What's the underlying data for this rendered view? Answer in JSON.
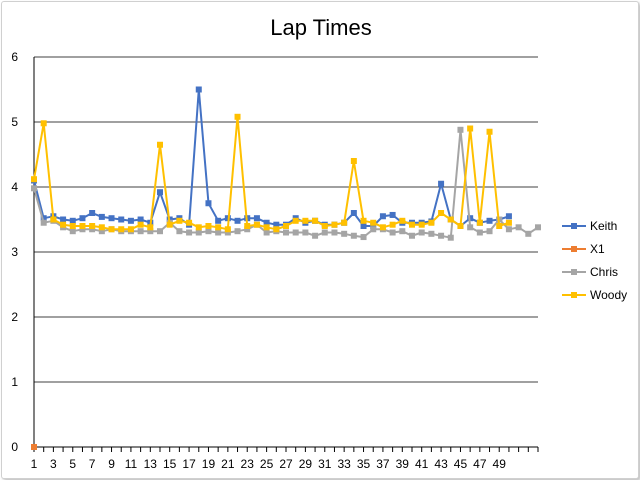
{
  "chart_data": {
    "type": "line",
    "title": "Lap Times",
    "ylim": [
      0,
      6
    ],
    "yticks": [
      0,
      1,
      2,
      3,
      4,
      5,
      6
    ],
    "xlim": [
      1,
      53
    ],
    "xtick_labels": [
      1,
      3,
      5,
      7,
      9,
      11,
      13,
      15,
      17,
      19,
      21,
      23,
      25,
      27,
      29,
      31,
      33,
      35,
      37,
      39,
      41,
      43,
      45,
      47,
      49
    ],
    "grid": true,
    "legend_position": "right",
    "series": [
      {
        "name": "Keith",
        "color": "#4472c4",
        "marker": "square",
        "values": [
          4.1,
          3.52,
          3.55,
          3.5,
          3.48,
          3.52,
          3.6,
          3.54,
          3.52,
          3.5,
          3.48,
          3.5,
          3.45,
          3.92,
          3.5,
          3.52,
          3.42,
          5.5,
          3.75,
          3.48,
          3.52,
          3.48,
          3.52,
          3.52,
          3.45,
          3.42,
          3.42,
          3.52,
          3.45,
          3.48,
          3.42,
          3.42,
          3.45,
          3.6,
          3.4,
          3.4,
          3.55,
          3.57,
          3.45,
          3.45,
          3.45,
          3.47,
          4.05,
          3.5,
          3.4,
          3.52,
          3.45,
          3.48,
          3.5,
          3.55
        ]
      },
      {
        "name": "X1",
        "color": "#ed7d31",
        "marker": "square",
        "values": [
          0
        ]
      },
      {
        "name": "Chris",
        "color": "#a5a5a5",
        "marker": "square",
        "values": [
          3.98,
          3.45,
          3.48,
          3.38,
          3.32,
          3.35,
          3.35,
          3.32,
          3.35,
          3.32,
          3.32,
          3.32,
          3.32,
          3.32,
          3.45,
          3.32,
          3.3,
          3.3,
          3.32,
          3.3,
          3.3,
          3.32,
          3.35,
          3.42,
          3.3,
          3.32,
          3.3,
          3.3,
          3.3,
          3.25,
          3.3,
          3.3,
          3.28,
          3.25,
          3.23,
          3.35,
          3.35,
          3.3,
          3.32,
          3.25,
          3.3,
          3.28,
          3.25,
          3.22,
          4.88,
          3.38,
          3.3,
          3.32,
          3.5,
          3.35,
          3.38,
          3.28,
          3.38
        ]
      },
      {
        "name": "Woody",
        "color": "#ffc000",
        "marker": "square",
        "values": [
          4.12,
          4.98,
          3.5,
          3.42,
          3.4,
          3.4,
          3.4,
          3.38,
          3.35,
          3.35,
          3.35,
          3.42,
          3.38,
          4.65,
          3.42,
          3.48,
          3.45,
          3.38,
          3.4,
          3.38,
          3.35,
          5.08,
          3.4,
          3.42,
          3.38,
          3.35,
          3.4,
          3.48,
          3.48,
          3.48,
          3.4,
          3.42,
          3.45,
          4.4,
          3.48,
          3.45,
          3.38,
          3.42,
          3.48,
          3.42,
          3.42,
          3.45,
          3.6,
          3.5,
          3.4,
          4.9,
          3.45,
          4.85,
          3.4,
          3.45
        ]
      }
    ]
  }
}
